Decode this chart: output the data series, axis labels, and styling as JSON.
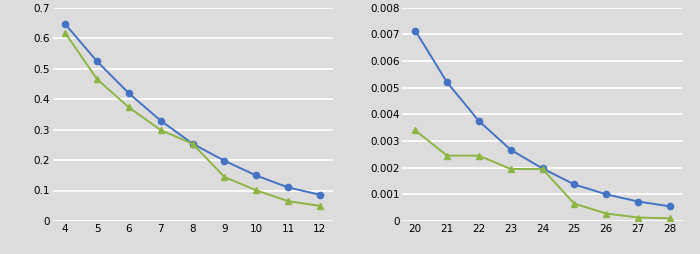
{
  "left": {
    "x": [
      4,
      5,
      6,
      7,
      8,
      9,
      10,
      11,
      12
    ],
    "blue": [
      0.6458,
      0.5236,
      0.4189,
      0.3292,
      0.2537,
      0.1978,
      0.1494,
      0.1102,
      0.0862
    ],
    "green": [
      0.6169,
      0.4653,
      0.3728,
      0.2981,
      0.2536,
      0.1447,
      0.1006,
      0.0653,
      0.0494
    ],
    "ylim": [
      0,
      0.7
    ],
    "yticks": [
      0,
      0.1,
      0.2,
      0.3,
      0.4,
      0.5,
      0.6,
      0.7
    ],
    "ytick_labels": [
      "0",
      "0.1",
      "0.2",
      "0.3",
      "0.4",
      "0.5",
      "0.6",
      "0.7"
    ],
    "xlim": [
      3.6,
      12.4
    ],
    "xticks": [
      4,
      5,
      6,
      7,
      8,
      9,
      10,
      11,
      12
    ]
  },
  "right": {
    "x": [
      20,
      21,
      22,
      23,
      24,
      25,
      26,
      27,
      28
    ],
    "blue": [
      0.00714,
      0.0052,
      0.00375,
      0.00267,
      0.00197,
      0.00137,
      0.001,
      0.00073,
      0.00055
    ],
    "green": [
      0.0034,
      0.00245,
      0.00245,
      0.00195,
      0.00195,
      0.00065,
      0.00028,
      0.00013,
      0.0001
    ],
    "ylim": [
      0,
      0.008
    ],
    "yticks": [
      0,
      0.001,
      0.002,
      0.003,
      0.004,
      0.005,
      0.006,
      0.007,
      0.008
    ],
    "ytick_labels": [
      "0",
      "0.001",
      "0.002",
      "0.003",
      "0.004",
      "0.005",
      "0.006",
      "0.007",
      "0.008"
    ],
    "xlim": [
      19.6,
      28.4
    ],
    "xticks": [
      20,
      21,
      22,
      23,
      24,
      25,
      26,
      27,
      28
    ]
  },
  "blue_color": "#4472C4",
  "green_color": "#8DB543",
  "bg_color": "#DCDCDC",
  "plot_bg_color": "#DCDCDC",
  "grid_color": "#FFFFFF",
  "marker_blue": "o",
  "marker_green": "^",
  "linewidth": 1.4,
  "markersize": 4.5,
  "tick_labelsize": 7.5
}
